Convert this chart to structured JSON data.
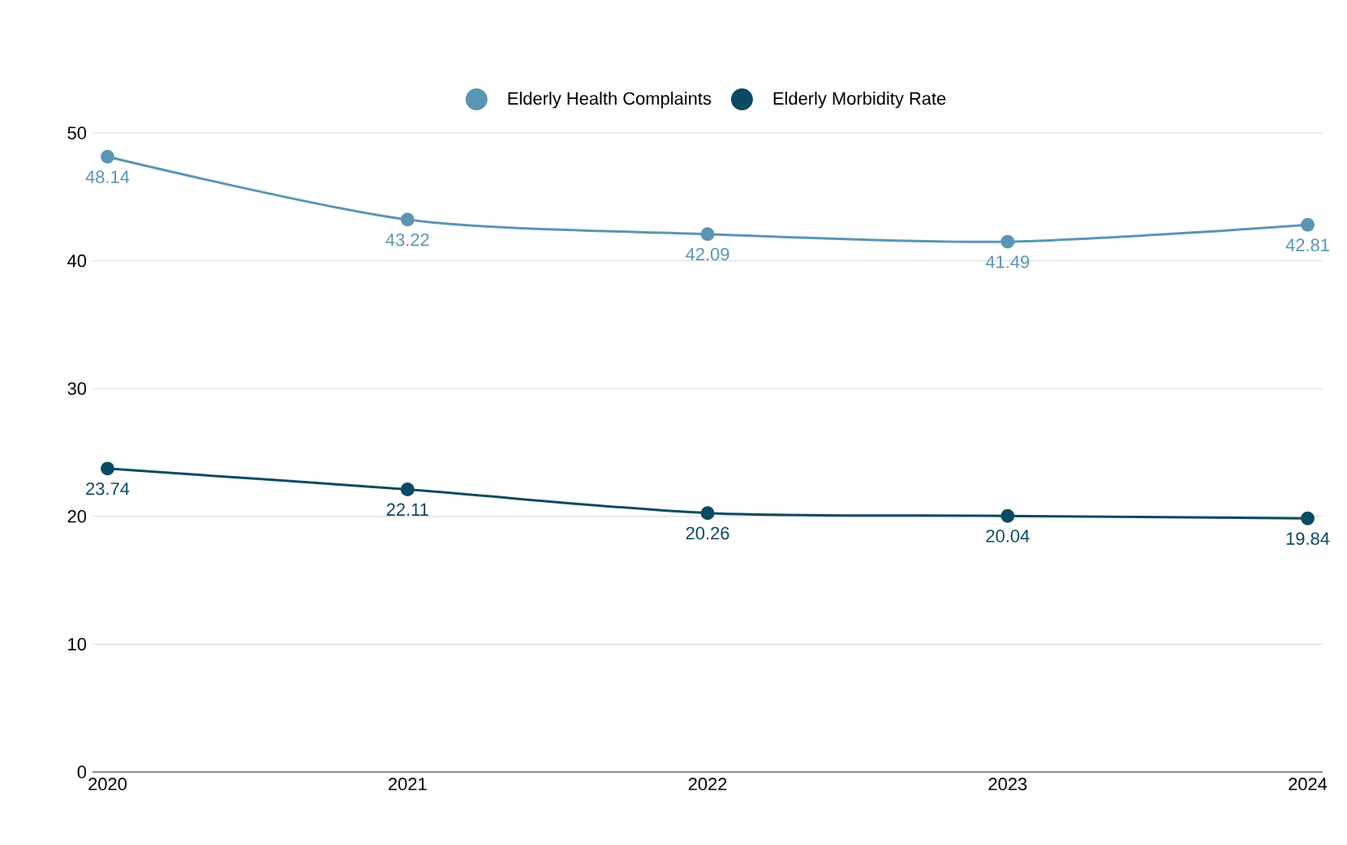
{
  "chart_data": {
    "type": "line",
    "categories": [
      "2020",
      "2021",
      "2022",
      "2023",
      "2024"
    ],
    "series": [
      {
        "name": "Elderly Health Complaints",
        "color": "#5b95b5",
        "values": [
          48.14,
          43.22,
          42.09,
          41.49,
          42.81
        ]
      },
      {
        "name": "Elderly Morbidity Rate",
        "color": "#0b4a64",
        "values": [
          23.74,
          22.11,
          20.26,
          20.04,
          19.84
        ]
      }
    ],
    "ylim": [
      0,
      50
    ],
    "yticks": [
      0,
      10,
      20,
      30,
      40,
      50
    ],
    "grid": "y",
    "legend": "top",
    "marker": "circle",
    "line_style": "solid",
    "data_labels": true
  }
}
